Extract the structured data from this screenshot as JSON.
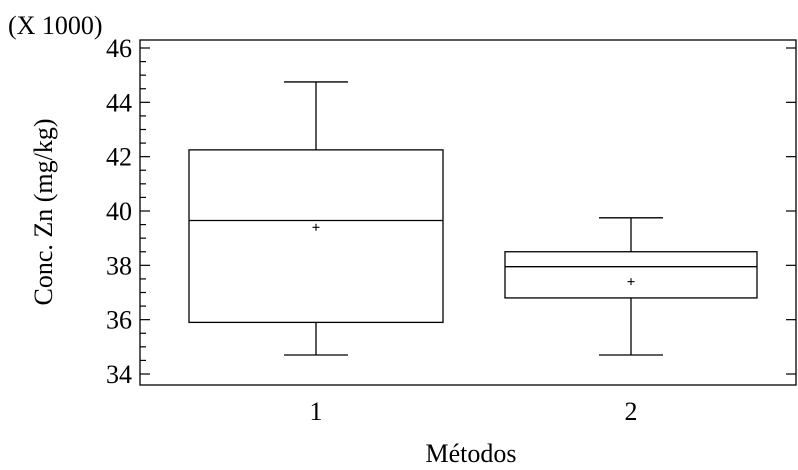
{
  "chart_data": {
    "type": "boxplot",
    "title": "",
    "xlabel": "Métodos",
    "ylabel": "Conc. Zn (mg/kg)",
    "y_multiplier_label": "(X 1000)",
    "ylim": [
      34,
      46
    ],
    "y_ticks": [
      "34",
      "36",
      "38",
      "40",
      "42",
      "44",
      "46"
    ],
    "y_tick_values": [
      34,
      36,
      38,
      40,
      42,
      44,
      46
    ],
    "y_minor_step": 0.5,
    "grid": false,
    "categories": [
      "1",
      "2"
    ],
    "boxes": [
      {
        "category": "1",
        "whisker_low": 34.7,
        "q1": 35.9,
        "median": 39.65,
        "q3": 42.25,
        "whisker_high": 44.75,
        "mean": 39.4
      },
      {
        "category": "2",
        "whisker_low": 34.7,
        "q1": 36.8,
        "median": 37.95,
        "q3": 38.5,
        "whisker_high": 39.75,
        "mean": 37.4
      }
    ]
  }
}
